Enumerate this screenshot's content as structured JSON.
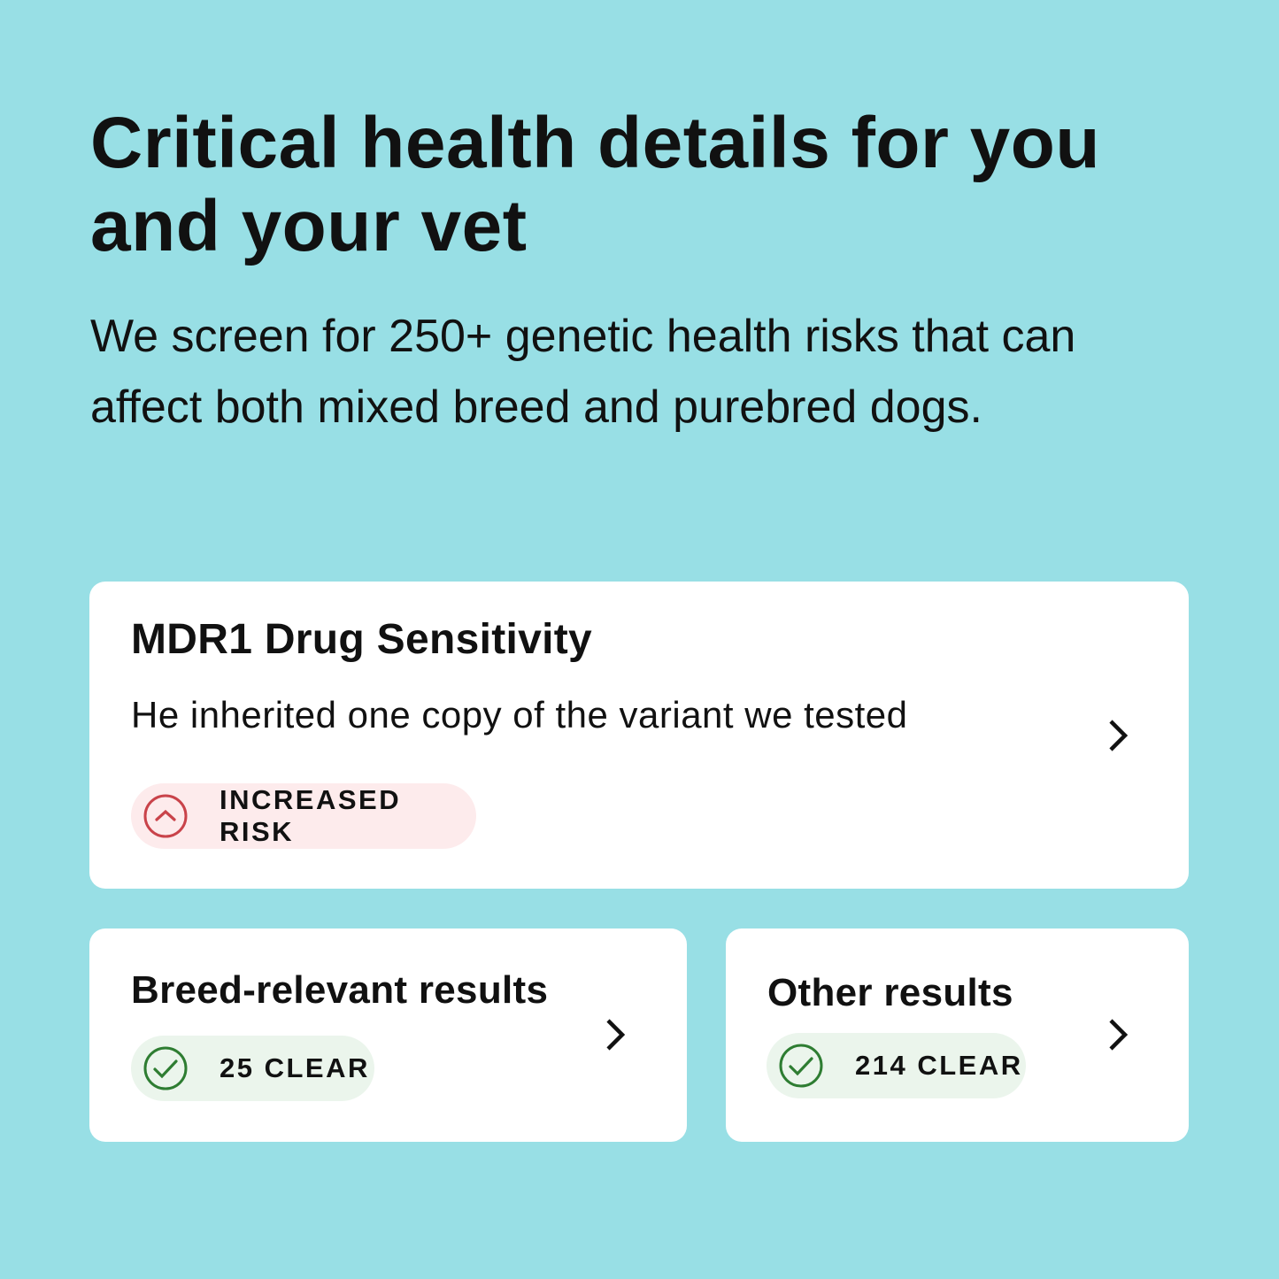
{
  "header": {
    "title": "Critical health details for you and your vet",
    "subtitle": "We screen for 250+ genetic health risks that can affect both mixed breed and purebred dogs."
  },
  "colors": {
    "background": "#98dfe5",
    "risk": "#c9434a",
    "clear": "#2e7d32"
  },
  "cards": [
    {
      "title": "MDR1 Drug Sensitivity",
      "description": "He inherited one copy of the variant we tested",
      "badge": "INCREASED RISK",
      "icon": "chevron-up-circle-icon"
    },
    {
      "title": "Breed-relevant results",
      "badge": "25 CLEAR",
      "icon": "check-circle-icon"
    },
    {
      "title": "Other results",
      "badge": "214 CLEAR",
      "icon": "check-circle-icon"
    }
  ]
}
